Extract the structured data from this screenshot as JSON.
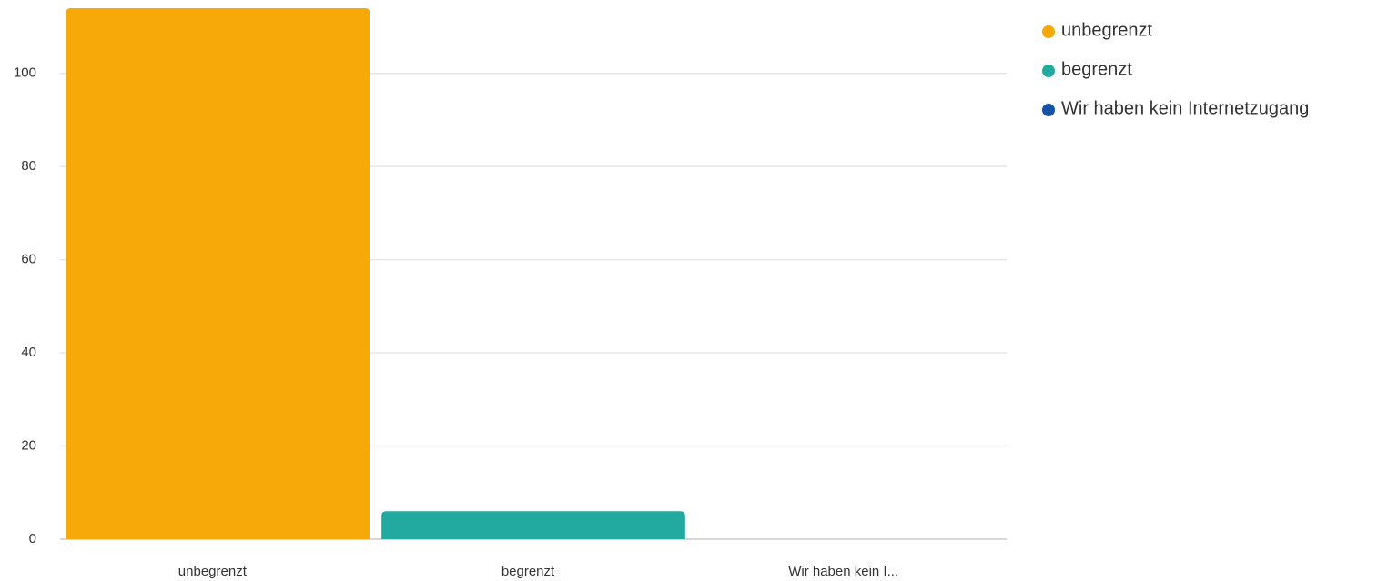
{
  "chart_data": {
    "type": "bar",
    "categories": [
      "unbegrenzt",
      "begrenzt",
      "Wir haben kein I..."
    ],
    "values": [
      114,
      6,
      0
    ],
    "colors": [
      "#f7a90a",
      "#22aaa1",
      "#1553a5"
    ],
    "legend": [
      "unbegrenzt",
      "begrenzt",
      "Wir haben kein Internetzugang"
    ],
    "ylim": [
      0,
      114
    ],
    "yticks": [
      0,
      20,
      40,
      60,
      80,
      100
    ],
    "grid": true,
    "legend_position": "right"
  }
}
